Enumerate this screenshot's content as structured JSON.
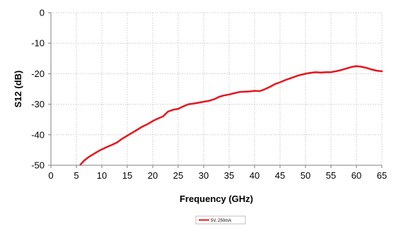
{
  "chart_data": {
    "type": "line",
    "title": "",
    "xlabel": "Frequency (GHz)",
    "ylabel": "S12 (dB)",
    "xlim": [
      0,
      65
    ],
    "ylim": [
      -50,
      0
    ],
    "x_ticks": [
      0,
      5,
      10,
      15,
      20,
      25,
      30,
      35,
      40,
      45,
      50,
      55,
      60,
      65
    ],
    "y_ticks": [
      0,
      -10,
      -20,
      -30,
      -40,
      -50
    ],
    "grid": true,
    "legend_position": "bottom-center",
    "series": [
      {
        "name": "5V, 250mA",
        "color": "#e8141c",
        "x": [
          5.8,
          6.5,
          7.5,
          8.5,
          9.5,
          10,
          11,
          12,
          13,
          14,
          15,
          16,
          17,
          18,
          19,
          20,
          21,
          22,
          23,
          24,
          25,
          26,
          27,
          28,
          29,
          30,
          31,
          32,
          33,
          34,
          35,
          36,
          37,
          38,
          39,
          40,
          41,
          42,
          43,
          44,
          45,
          46,
          47,
          48,
          49,
          50,
          51,
          52,
          53,
          54,
          55,
          56,
          57,
          58,
          59,
          60,
          61,
          62,
          63,
          64,
          65
        ],
        "y": [
          -49.8,
          -48.5,
          -47.2,
          -46.2,
          -45.2,
          -44.8,
          -44.0,
          -43.3,
          -42.5,
          -41.3,
          -40.3,
          -39.3,
          -38.3,
          -37.3,
          -36.5,
          -35.5,
          -34.7,
          -34.0,
          -32.4,
          -31.8,
          -31.5,
          -30.7,
          -30.0,
          -29.8,
          -29.5,
          -29.2,
          -28.9,
          -28.4,
          -27.6,
          -27.1,
          -26.8,
          -26.4,
          -26.0,
          -25.9,
          -25.8,
          -25.6,
          -25.7,
          -25.1,
          -24.3,
          -23.4,
          -22.8,
          -22.1,
          -21.5,
          -20.9,
          -20.4,
          -20.0,
          -19.7,
          -19.5,
          -19.6,
          -19.5,
          -19.5,
          -19.2,
          -18.8,
          -18.3,
          -17.8,
          -17.5,
          -17.7,
          -18.1,
          -18.6,
          -19.0,
          -19.2
        ]
      }
    ]
  }
}
